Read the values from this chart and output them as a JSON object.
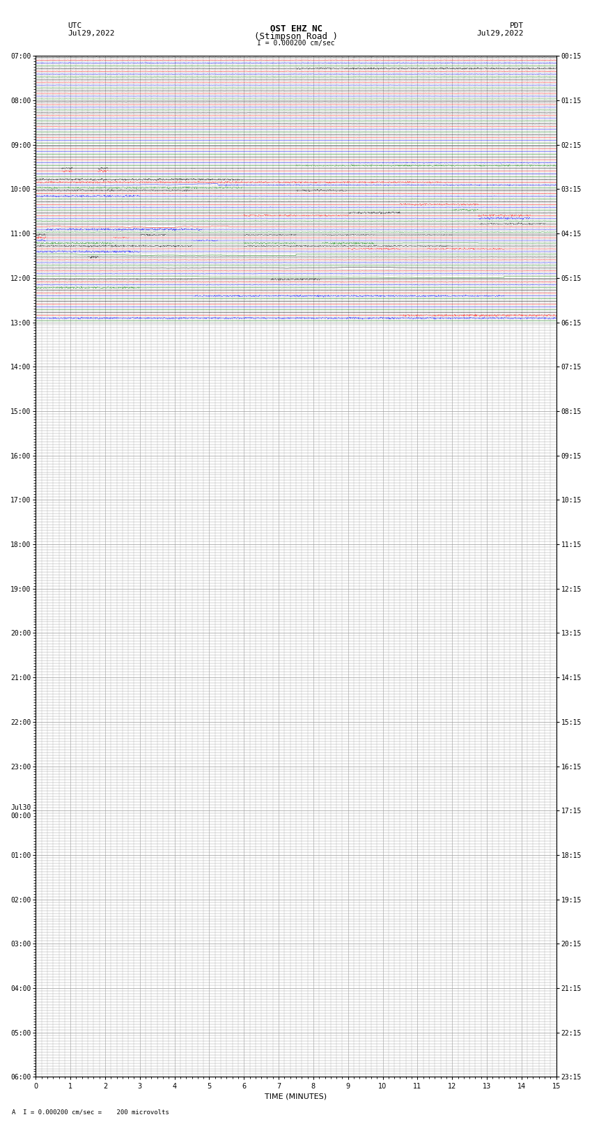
{
  "title_line1": "OST EHZ NC",
  "title_line2": "(Stimpson Road )",
  "scale_label": "I = 0.000200 cm/sec",
  "left_header": "UTC",
  "left_date": "Jul29,2022",
  "right_header": "PDT",
  "right_date": "Jul29,2022",
  "bottom_label": "TIME (MINUTES)",
  "bottom_note": "A  I = 0.000200 cm/sec =    200 microvolts",
  "xlabel_ticks": [
    0,
    1,
    2,
    3,
    4,
    5,
    6,
    7,
    8,
    9,
    10,
    11,
    12,
    13,
    14,
    15
  ],
  "utc_labels_at_hour": [
    [
      "07:00",
      0
    ],
    [
      "08:00",
      4
    ],
    [
      "09:00",
      8
    ],
    [
      "10:00",
      12
    ],
    [
      "11:00",
      16
    ],
    [
      "12:00",
      20
    ],
    [
      "13:00",
      24
    ],
    [
      "14:00",
      28
    ],
    [
      "15:00",
      32
    ],
    [
      "16:00",
      36
    ],
    [
      "17:00",
      40
    ],
    [
      "18:00",
      44
    ],
    [
      "19:00",
      48
    ],
    [
      "20:00",
      52
    ],
    [
      "21:00",
      56
    ],
    [
      "22:00",
      60
    ],
    [
      "23:00",
      64
    ],
    [
      "Jul30\n00:00",
      68
    ],
    [
      "01:00",
      72
    ],
    [
      "02:00",
      76
    ],
    [
      "03:00",
      80
    ],
    [
      "04:00",
      84
    ],
    [
      "05:00",
      88
    ],
    [
      "06:00",
      92
    ]
  ],
  "pdt_labels_at_hour": [
    [
      "00:15",
      0
    ],
    [
      "01:15",
      4
    ],
    [
      "02:15",
      8
    ],
    [
      "03:15",
      12
    ],
    [
      "04:15",
      16
    ],
    [
      "05:15",
      20
    ],
    [
      "06:15",
      24
    ],
    [
      "07:15",
      28
    ],
    [
      "08:15",
      32
    ],
    [
      "09:15",
      36
    ],
    [
      "10:15",
      40
    ],
    [
      "11:15",
      44
    ],
    [
      "12:15",
      48
    ],
    [
      "13:15",
      52
    ],
    [
      "14:15",
      56
    ],
    [
      "15:15",
      60
    ],
    [
      "16:15",
      64
    ],
    [
      "17:15",
      68
    ],
    [
      "18:15",
      72
    ],
    [
      "19:15",
      76
    ],
    [
      "20:15",
      80
    ],
    [
      "21:15",
      84
    ],
    [
      "22:15",
      88
    ],
    [
      "23:15",
      92
    ]
  ],
  "num_hours": 24,
  "traces_per_hour": 4,
  "colors": [
    "black",
    "red",
    "blue",
    "green"
  ],
  "bg_color": "white",
  "grid_color": "#999999",
  "fontsize_title": 9,
  "fontsize_labels": 8,
  "fontsize_ticks": 7,
  "seed": 42
}
